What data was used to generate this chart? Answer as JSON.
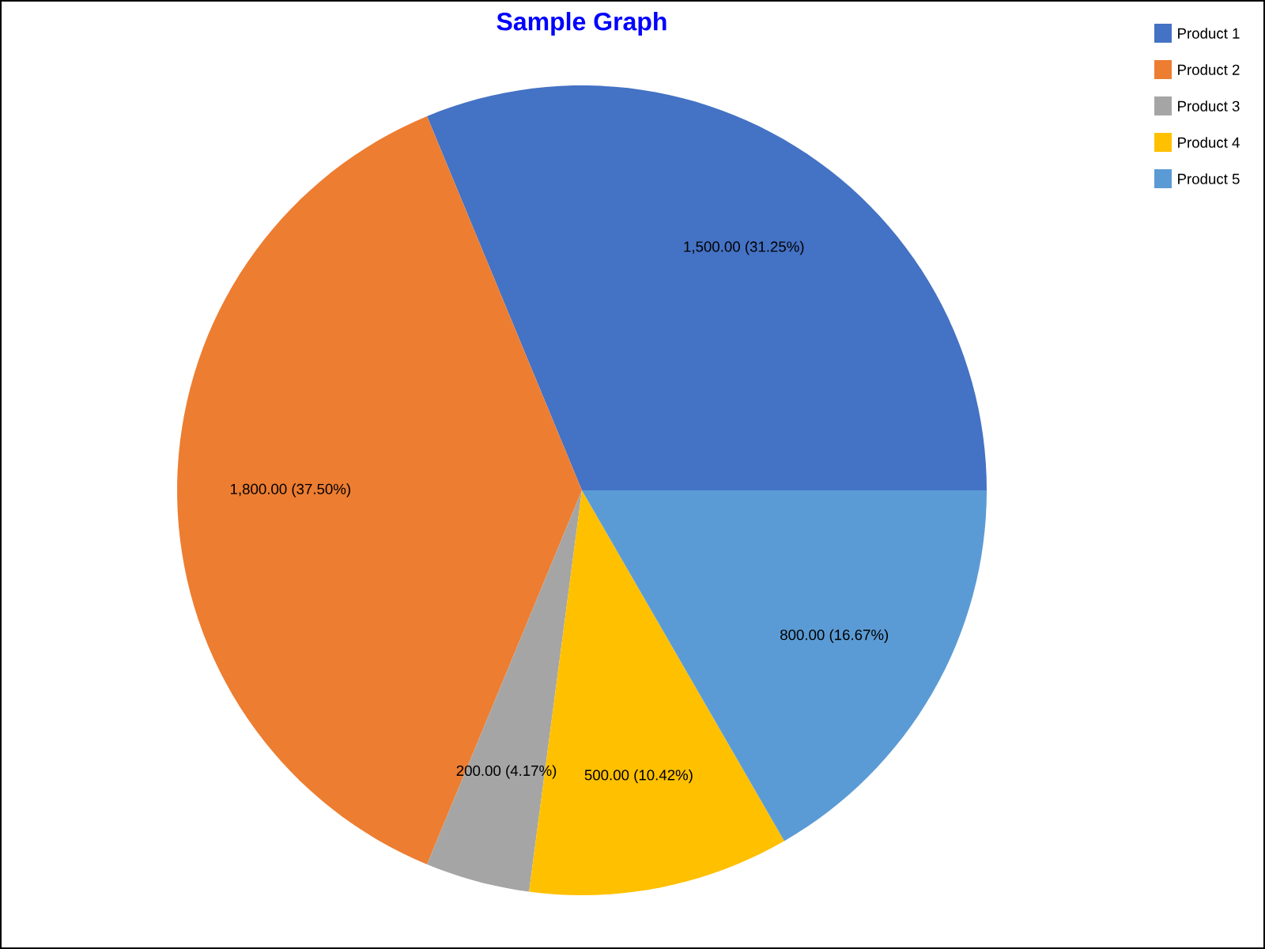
{
  "chart_data": {
    "type": "pie",
    "title": "Sample Graph",
    "categories": [
      "Product 1",
      "Product 2",
      "Product 3",
      "Product 4",
      "Product 5"
    ],
    "values": [
      1500,
      1800,
      200,
      500,
      800
    ],
    "value_labels": [
      "1,500.00 (31.25%)",
      "1,800.00 (37.50%)",
      "200.00 (4.17%)",
      "500.00 (10.42%)",
      "800.00 (16.67%)"
    ],
    "colors": [
      "#4472c4",
      "#ed7d31",
      "#a5a5a5",
      "#ffc000",
      "#5b9bd5"
    ],
    "legend": "top right"
  }
}
